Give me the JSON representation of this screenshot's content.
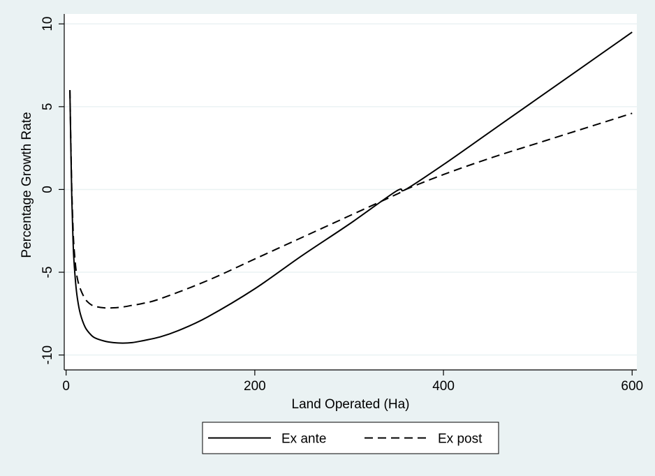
{
  "chart_data": {
    "type": "line",
    "title": "",
    "xlabel": "Land Operated (Ha)",
    "ylabel": "Percentage Growth Rate",
    "xlim": [
      -2,
      605
    ],
    "ylim": [
      -10.9,
      10.6
    ],
    "xticks": [
      0,
      200,
      400,
      600
    ],
    "yticks": [
      -10,
      -5,
      0,
      5,
      10
    ],
    "grid": true,
    "legend": "bottom",
    "colors": {
      "background": "#eaf2f3",
      "plot_area": "#ffffff",
      "line": "#000000",
      "grid": "#eaf2f3"
    },
    "series": [
      {
        "name": "Ex ante",
        "style": "solid",
        "x": [
          4,
          5,
          6,
          7,
          8,
          10,
          12,
          15,
          20,
          25,
          30,
          40,
          50,
          60,
          70,
          80,
          100,
          120,
          150,
          200,
          250,
          300,
          350,
          360,
          400,
          450,
          500,
          550,
          600
        ],
        "y": [
          6.0,
          2.5,
          -0.5,
          -2.5,
          -4.0,
          -5.6,
          -6.6,
          -7.5,
          -8.3,
          -8.7,
          -8.95,
          -9.15,
          -9.25,
          -9.28,
          -9.25,
          -9.15,
          -8.9,
          -8.5,
          -7.7,
          -6.0,
          -4.0,
          -2.1,
          -0.1,
          0.0,
          1.5,
          3.5,
          5.5,
          7.5,
          9.5
        ]
      },
      {
        "name": "Ex post",
        "style": "dashed",
        "x": [
          4,
          5,
          6,
          7,
          8,
          10,
          12,
          15,
          20,
          25,
          30,
          40,
          50,
          60,
          70,
          80,
          100,
          150,
          200,
          250,
          300,
          350,
          360,
          400,
          450,
          500,
          550,
          600
        ],
        "y": [
          6.0,
          2.8,
          0.0,
          -1.8,
          -3.2,
          -4.6,
          -5.4,
          -6.0,
          -6.6,
          -6.9,
          -7.05,
          -7.15,
          -7.15,
          -7.1,
          -7.0,
          -6.9,
          -6.6,
          -5.5,
          -4.2,
          -2.9,
          -1.6,
          -0.3,
          0.0,
          0.9,
          1.9,
          2.8,
          3.7,
          4.6
        ]
      }
    ]
  }
}
